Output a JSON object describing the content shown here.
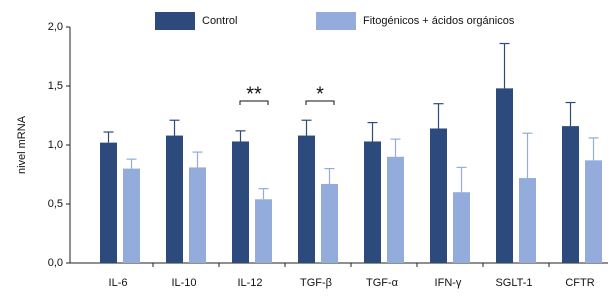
{
  "chart_data": {
    "type": "bar",
    "y_label": "nivel mRNA",
    "categories": [
      "IL-6",
      "IL-10",
      "IL-12",
      "TGF-β",
      "TGF-α",
      "IFN-γ",
      "SGLT-1",
      "CFTR"
    ],
    "series": [
      {
        "name": "Control",
        "color": "#2d4a7c",
        "values": [
          1.02,
          1.08,
          1.03,
          1.08,
          1.03,
          1.14,
          1.48,
          1.16
        ],
        "errors": [
          0.09,
          0.13,
          0.09,
          0.13,
          0.16,
          0.21,
          0.38,
          0.2
        ]
      },
      {
        "name": "Fitogénicos + ácidos orgánicos",
        "color": "#94acdc",
        "values": [
          0.8,
          0.81,
          0.54,
          0.67,
          0.9,
          0.6,
          0.72,
          0.87
        ],
        "errors": [
          0.08,
          0.13,
          0.09,
          0.13,
          0.15,
          0.21,
          0.38,
          0.19
        ]
      }
    ],
    "annotations": [
      "**",
      "*"
    ],
    "ylim": [
      0,
      2
    ],
    "yticks": [
      {
        "value": 0,
        "label": "0,0"
      },
      {
        "value": 0.5,
        "label": "0,5"
      },
      {
        "value": 1,
        "label": "1,0"
      },
      {
        "value": 1.5,
        "label": "1,5"
      },
      {
        "value": 2,
        "label": "2,0"
      }
    ]
  }
}
